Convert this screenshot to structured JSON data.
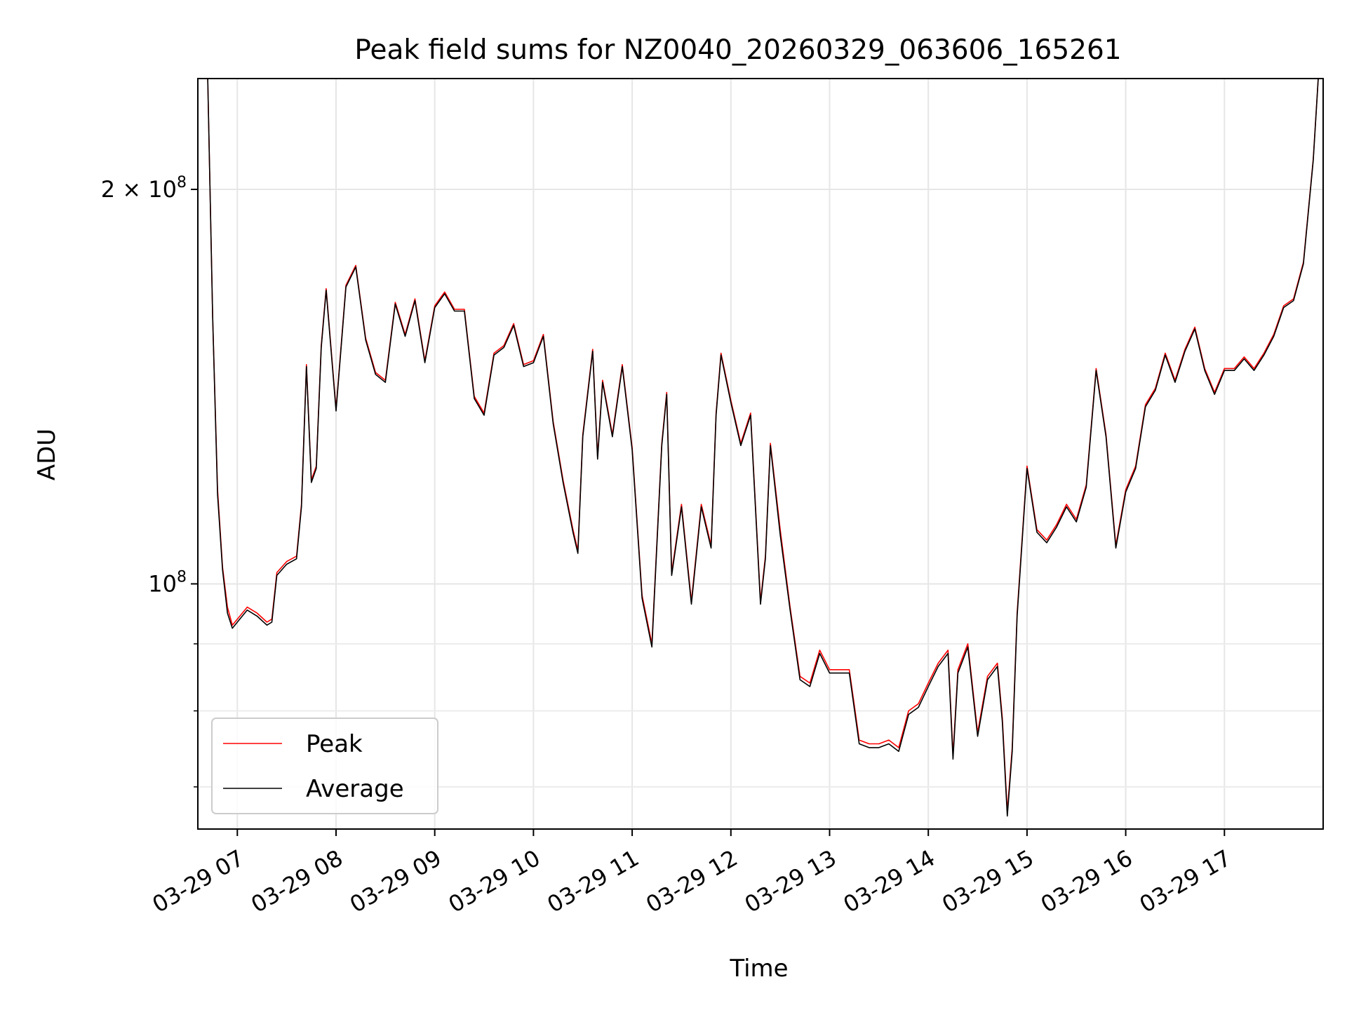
{
  "chart_data": {
    "type": "line",
    "title": "Peak field sums for NZ0040_20260329_063606_165261",
    "xlabel": "Time",
    "ylabel": "ADU",
    "x_unit": "hours of day (2026-03-29)",
    "xlim": [
      6.6,
      18.0
    ],
    "ylim": [
      65000000,
      243000000
    ],
    "y_scale": "log",
    "grid": true,
    "legend_position": "lower-left",
    "x_ticks": [
      {
        "value": 7,
        "label": "03-29 07"
      },
      {
        "value": 8,
        "label": "03-29 08"
      },
      {
        "value": 9,
        "label": "03-29 09"
      },
      {
        "value": 10,
        "label": "03-29 10"
      },
      {
        "value": 11,
        "label": "03-29 11"
      },
      {
        "value": 12,
        "label": "03-29 12"
      },
      {
        "value": 13,
        "label": "03-29 13"
      },
      {
        "value": 14,
        "label": "03-29 14"
      },
      {
        "value": 15,
        "label": "03-29 15"
      },
      {
        "value": 16,
        "label": "03-29 16"
      },
      {
        "value": 17,
        "label": "03-29 17"
      }
    ],
    "y_ticks": [
      {
        "value": 100000000,
        "base": "10",
        "exp": "8"
      },
      {
        "value": 200000000,
        "base": "2 × 10",
        "exp": "8"
      }
    ],
    "y_minor_ticks": [
      70000000,
      80000000,
      90000000
    ],
    "series": [
      {
        "name": "Peak",
        "color": "#ff0000",
        "x": [
          6.6,
          6.7,
          6.75,
          6.8,
          6.85,
          6.9,
          6.95,
          7.0,
          7.1,
          7.2,
          7.3,
          7.35,
          7.4,
          7.5,
          7.6,
          7.65,
          7.7,
          7.75,
          7.8,
          7.85,
          7.9,
          8.0,
          8.1,
          8.2,
          8.3,
          8.4,
          8.5,
          8.6,
          8.7,
          8.8,
          8.9,
          9.0,
          9.1,
          9.2,
          9.3,
          9.4,
          9.5,
          9.6,
          9.7,
          9.8,
          9.9,
          10.0,
          10.1,
          10.2,
          10.3,
          10.4,
          10.45,
          10.5,
          10.6,
          10.65,
          10.7,
          10.8,
          10.9,
          11.0,
          11.1,
          11.2,
          11.3,
          11.35,
          11.4,
          11.5,
          11.6,
          11.7,
          11.8,
          11.85,
          11.9,
          12.0,
          12.1,
          12.2,
          12.3,
          12.35,
          12.4,
          12.5,
          12.6,
          12.7,
          12.8,
          12.9,
          13.0,
          13.1,
          13.2,
          13.3,
          13.4,
          13.5,
          13.6,
          13.7,
          13.8,
          13.9,
          14.0,
          14.1,
          14.2,
          14.25,
          14.3,
          14.4,
          14.5,
          14.6,
          14.7,
          14.75,
          14.8,
          14.85,
          14.9,
          15.0,
          15.1,
          15.2,
          15.3,
          15.4,
          15.5,
          15.6,
          15.7,
          15.8,
          15.9,
          16.0,
          16.1,
          16.2,
          16.3,
          16.4,
          16.5,
          16.6,
          16.7,
          16.8,
          16.9,
          17.0,
          17.1,
          17.2,
          17.3,
          17.4,
          17.5,
          17.6,
          17.7,
          17.8,
          17.9,
          17.95
        ],
        "y": [
          243000000,
          243000000,
          160000000,
          118000000,
          103000000,
          96000000,
          93000000,
          94000000,
          96000000,
          95000000,
          93500000,
          94000000,
          102000000,
          104000000,
          105000000,
          115000000,
          147000000,
          120000000,
          123000000,
          152000000,
          168000000,
          136000000,
          169000000,
          175000000,
          154000000,
          145000000,
          143000000,
          164000000,
          155000000,
          165000000,
          148000000,
          163000000,
          167000000,
          162000000,
          162000000,
          139000000,
          135000000,
          150000000,
          152000000,
          158000000,
          147000000,
          148000000,
          155000000,
          133000000,
          120000000,
          110000000,
          106000000,
          130000000,
          151000000,
          125000000,
          143000000,
          130000000,
          147000000,
          127000000,
          98000000,
          90000000,
          128000000,
          140000000,
          102000000,
          115000000,
          97000000,
          115000000,
          107000000,
          135000000,
          150000000,
          138000000,
          128000000,
          135000000,
          97000000,
          105000000,
          128000000,
          110000000,
          96000000,
          85000000,
          84000000,
          89000000,
          86000000,
          86000000,
          86000000,
          76000000,
          75500000,
          75500000,
          76000000,
          75000000,
          80000000,
          81000000,
          84000000,
          87000000,
          89000000,
          74000000,
          86000000,
          90000000,
          77000000,
          85000000,
          87000000,
          79000000,
          67000000,
          75000000,
          95000000,
          123000000,
          110000000,
          108000000,
          111000000,
          115000000,
          112000000,
          119000000,
          146000000,
          130000000,
          107000000,
          118000000,
          123000000,
          137000000,
          141000000,
          150000000,
          143000000,
          151000000,
          157000000,
          146000000,
          140000000,
          146000000,
          146000000,
          149000000,
          146000000,
          150000000,
          155000000,
          163000000,
          165000000,
          176000000,
          211000000,
          243000000
        ]
      },
      {
        "name": "Average",
        "color": "#000000",
        "x": [
          6.6,
          6.7,
          6.75,
          6.8,
          6.85,
          6.9,
          6.95,
          7.0,
          7.1,
          7.2,
          7.3,
          7.35,
          7.4,
          7.5,
          7.6,
          7.65,
          7.7,
          7.75,
          7.8,
          7.85,
          7.9,
          8.0,
          8.1,
          8.2,
          8.3,
          8.4,
          8.5,
          8.6,
          8.7,
          8.8,
          8.9,
          9.0,
          9.1,
          9.2,
          9.3,
          9.4,
          9.5,
          9.6,
          9.7,
          9.8,
          9.9,
          10.0,
          10.1,
          10.2,
          10.3,
          10.4,
          10.45,
          10.5,
          10.6,
          10.65,
          10.7,
          10.8,
          10.9,
          11.0,
          11.1,
          11.2,
          11.3,
          11.35,
          11.4,
          11.5,
          11.6,
          11.7,
          11.8,
          11.85,
          11.9,
          12.0,
          12.1,
          12.2,
          12.3,
          12.35,
          12.4,
          12.5,
          12.6,
          12.7,
          12.8,
          12.9,
          13.0,
          13.1,
          13.2,
          13.3,
          13.4,
          13.5,
          13.6,
          13.7,
          13.8,
          13.9,
          14.0,
          14.1,
          14.2,
          14.25,
          14.3,
          14.4,
          14.5,
          14.6,
          14.7,
          14.75,
          14.8,
          14.85,
          14.9,
          15.0,
          15.1,
          15.2,
          15.3,
          15.4,
          15.5,
          15.6,
          15.7,
          15.8,
          15.9,
          16.0,
          16.1,
          16.2,
          16.3,
          16.4,
          16.5,
          16.6,
          16.7,
          16.8,
          16.9,
          17.0,
          17.1,
          17.2,
          17.3,
          17.4,
          17.5,
          17.6,
          17.7,
          17.8,
          17.9,
          17.95
        ],
        "y": [
          243000000,
          243000000,
          160000000,
          117000000,
          102500000,
          95000000,
          92500000,
          93500000,
          95500000,
          94500000,
          93000000,
          93500000,
          101500000,
          103500000,
          104500000,
          114500000,
          146500000,
          119500000,
          122500000,
          151500000,
          167500000,
          135500000,
          168500000,
          174500000,
          153500000,
          144500000,
          142500000,
          163500000,
          154500000,
          164500000,
          147500000,
          162500000,
          166500000,
          161500000,
          161500000,
          138500000,
          134500000,
          149500000,
          151500000,
          157500000,
          146500000,
          147500000,
          154500000,
          132500000,
          119500000,
          109500000,
          105500000,
          129500000,
          150500000,
          124500000,
          142500000,
          129500000,
          146500000,
          126500000,
          97500000,
          89500000,
          127500000,
          139500000,
          101500000,
          114500000,
          96500000,
          114500000,
          106500000,
          134500000,
          149500000,
          137500000,
          127500000,
          134500000,
          96500000,
          104500000,
          127500000,
          109000000,
          95500000,
          84500000,
          83500000,
          88500000,
          85500000,
          85500000,
          85500000,
          75500000,
          75000000,
          75000000,
          75500000,
          74500000,
          79500000,
          80500000,
          83500000,
          86500000,
          88500000,
          73500000,
          85500000,
          89500000,
          76500000,
          84500000,
          86500000,
          78500000,
          66500000,
          74500000,
          94500000,
          122500000,
          109500000,
          107500000,
          110500000,
          114500000,
          111500000,
          118500000,
          145500000,
          129500000,
          106500000,
          117500000,
          122500000,
          136500000,
          140500000,
          149500000,
          142500000,
          150500000,
          156500000,
          145500000,
          139500000,
          145500000,
          145500000,
          148500000,
          145500000,
          149500000,
          154500000,
          162500000,
          164500000,
          175500000,
          210500000,
          243000000
        ]
      }
    ]
  }
}
